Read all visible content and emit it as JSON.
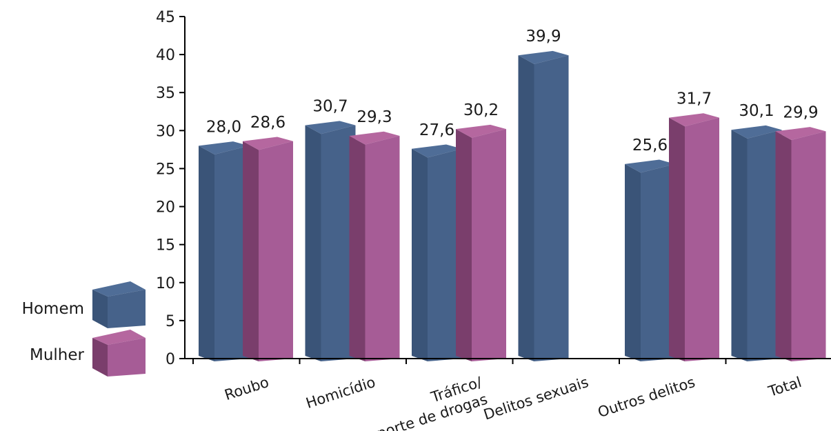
{
  "chart_data": {
    "type": "bar",
    "categories": [
      [
        "Roubo"
      ],
      [
        "Homicídio"
      ],
      [
        "Tráfico/",
        "porte de drogas"
      ],
      [
        "Delitos sexuais"
      ],
      [
        "Outros delitos"
      ],
      [
        "Total"
      ]
    ],
    "series": [
      {
        "name": "Homem",
        "values": [
          28.0,
          30.7,
          27.6,
          39.9,
          25.6,
          30.1
        ],
        "labels": [
          "28,0",
          "30,7",
          "27,6",
          "39,9",
          "25,6",
          "30,1"
        ],
        "color": "#46628a",
        "side_color": "#3a5478",
        "top_color": "#4f6d97"
      },
      {
        "name": "Mulher",
        "values": [
          28.6,
          29.3,
          30.2,
          null,
          31.7,
          29.9
        ],
        "labels": [
          "28,6",
          "29,3",
          "30,2",
          "",
          "31,7",
          "29,9"
        ],
        "color": "#a65c96",
        "side_color": "#7a3e6c",
        "top_color": "#b5679f"
      }
    ],
    "ylim": [
      0,
      45
    ],
    "yticks": [
      "0",
      "5",
      "10",
      "15",
      "20",
      "25",
      "30",
      "35",
      "40",
      "45"
    ],
    "xlabel": "",
    "ylabel": "",
    "legend": {
      "placement": "left",
      "entries": [
        "Homem",
        "Mulher"
      ]
    },
    "grid": false
  }
}
